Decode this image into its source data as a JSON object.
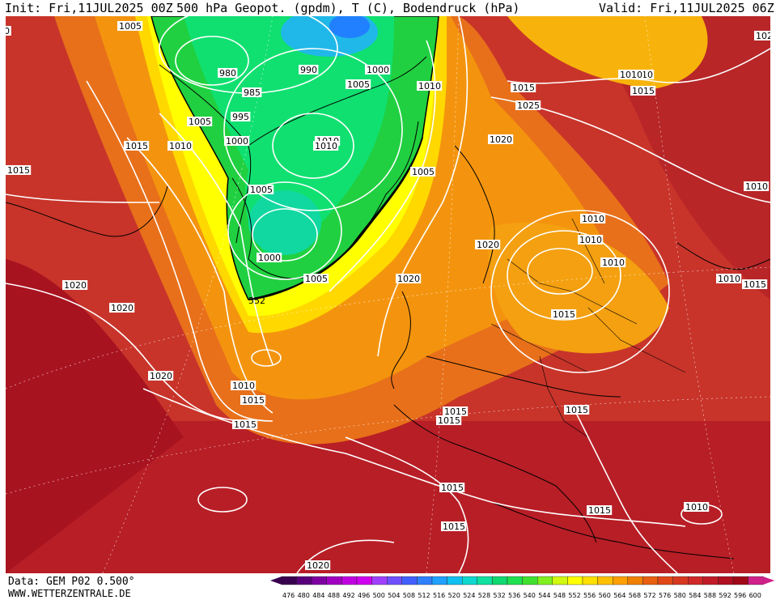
{
  "header": {
    "init": "Init: Fri,11JUL2025 00Z",
    "title": "500 hPa Geopot. (gpdm), T (C), Bodendruck (hPa)",
    "valid": "Valid: Fri,11JUL2025 06Z"
  },
  "footer": {
    "data_source": "Data: GEM P02 0.500°",
    "website": "WWW.WETTERZENTRALE.DE"
  },
  "legend": {
    "values": [
      "476",
      "480",
      "484",
      "488",
      "492",
      "496",
      "500",
      "504",
      "508",
      "512",
      "516",
      "520",
      "524",
      "528",
      "532",
      "536",
      "540",
      "544",
      "548",
      "552",
      "556",
      "560",
      "564",
      "568",
      "572",
      "576",
      "580",
      "584",
      "588",
      "592",
      "596",
      "600"
    ],
    "colors": [
      "#3a0050",
      "#5a007a",
      "#7d00a0",
      "#a000c0",
      "#c000e0",
      "#d000f0",
      "#a040ff",
      "#7050ff",
      "#4060ff",
      "#3080ff",
      "#20a0ff",
      "#10c0f0",
      "#10d8d0",
      "#10e0a0",
      "#10d870",
      "#20e050",
      "#40e030",
      "#80f020",
      "#d0f810",
      "#ffff00",
      "#ffe000",
      "#ffc000",
      "#ffa000",
      "#f08000",
      "#e86010",
      "#e04818",
      "#d83820",
      "#d02828",
      "#c01c28",
      "#b01020",
      "#a00818",
      "#d0208a"
    ]
  },
  "map_labels": {
    "isobars": [
      "1005",
      "980",
      "990",
      "1000",
      "1005",
      "1010",
      "985",
      "995",
      "1005",
      "1000",
      "1015",
      "1010",
      "1010",
      "1015",
      "1005",
      "1010",
      "1000",
      "1005",
      "1020",
      "1025",
      "1010",
      "1015",
      "1020",
      "1015",
      "1010",
      "1010",
      "1020",
      "1020",
      "1015",
      "1010",
      "1010",
      "1020",
      "1015",
      "1015",
      "1015",
      "1010",
      "1020",
      "1015",
      "1015",
      "1015",
      "1015",
      "1010",
      "1020",
      "1015",
      "1020",
      "1010",
      "1010",
      "1015",
      "1005",
      "0"
    ],
    "contour_552": "552"
  }
}
